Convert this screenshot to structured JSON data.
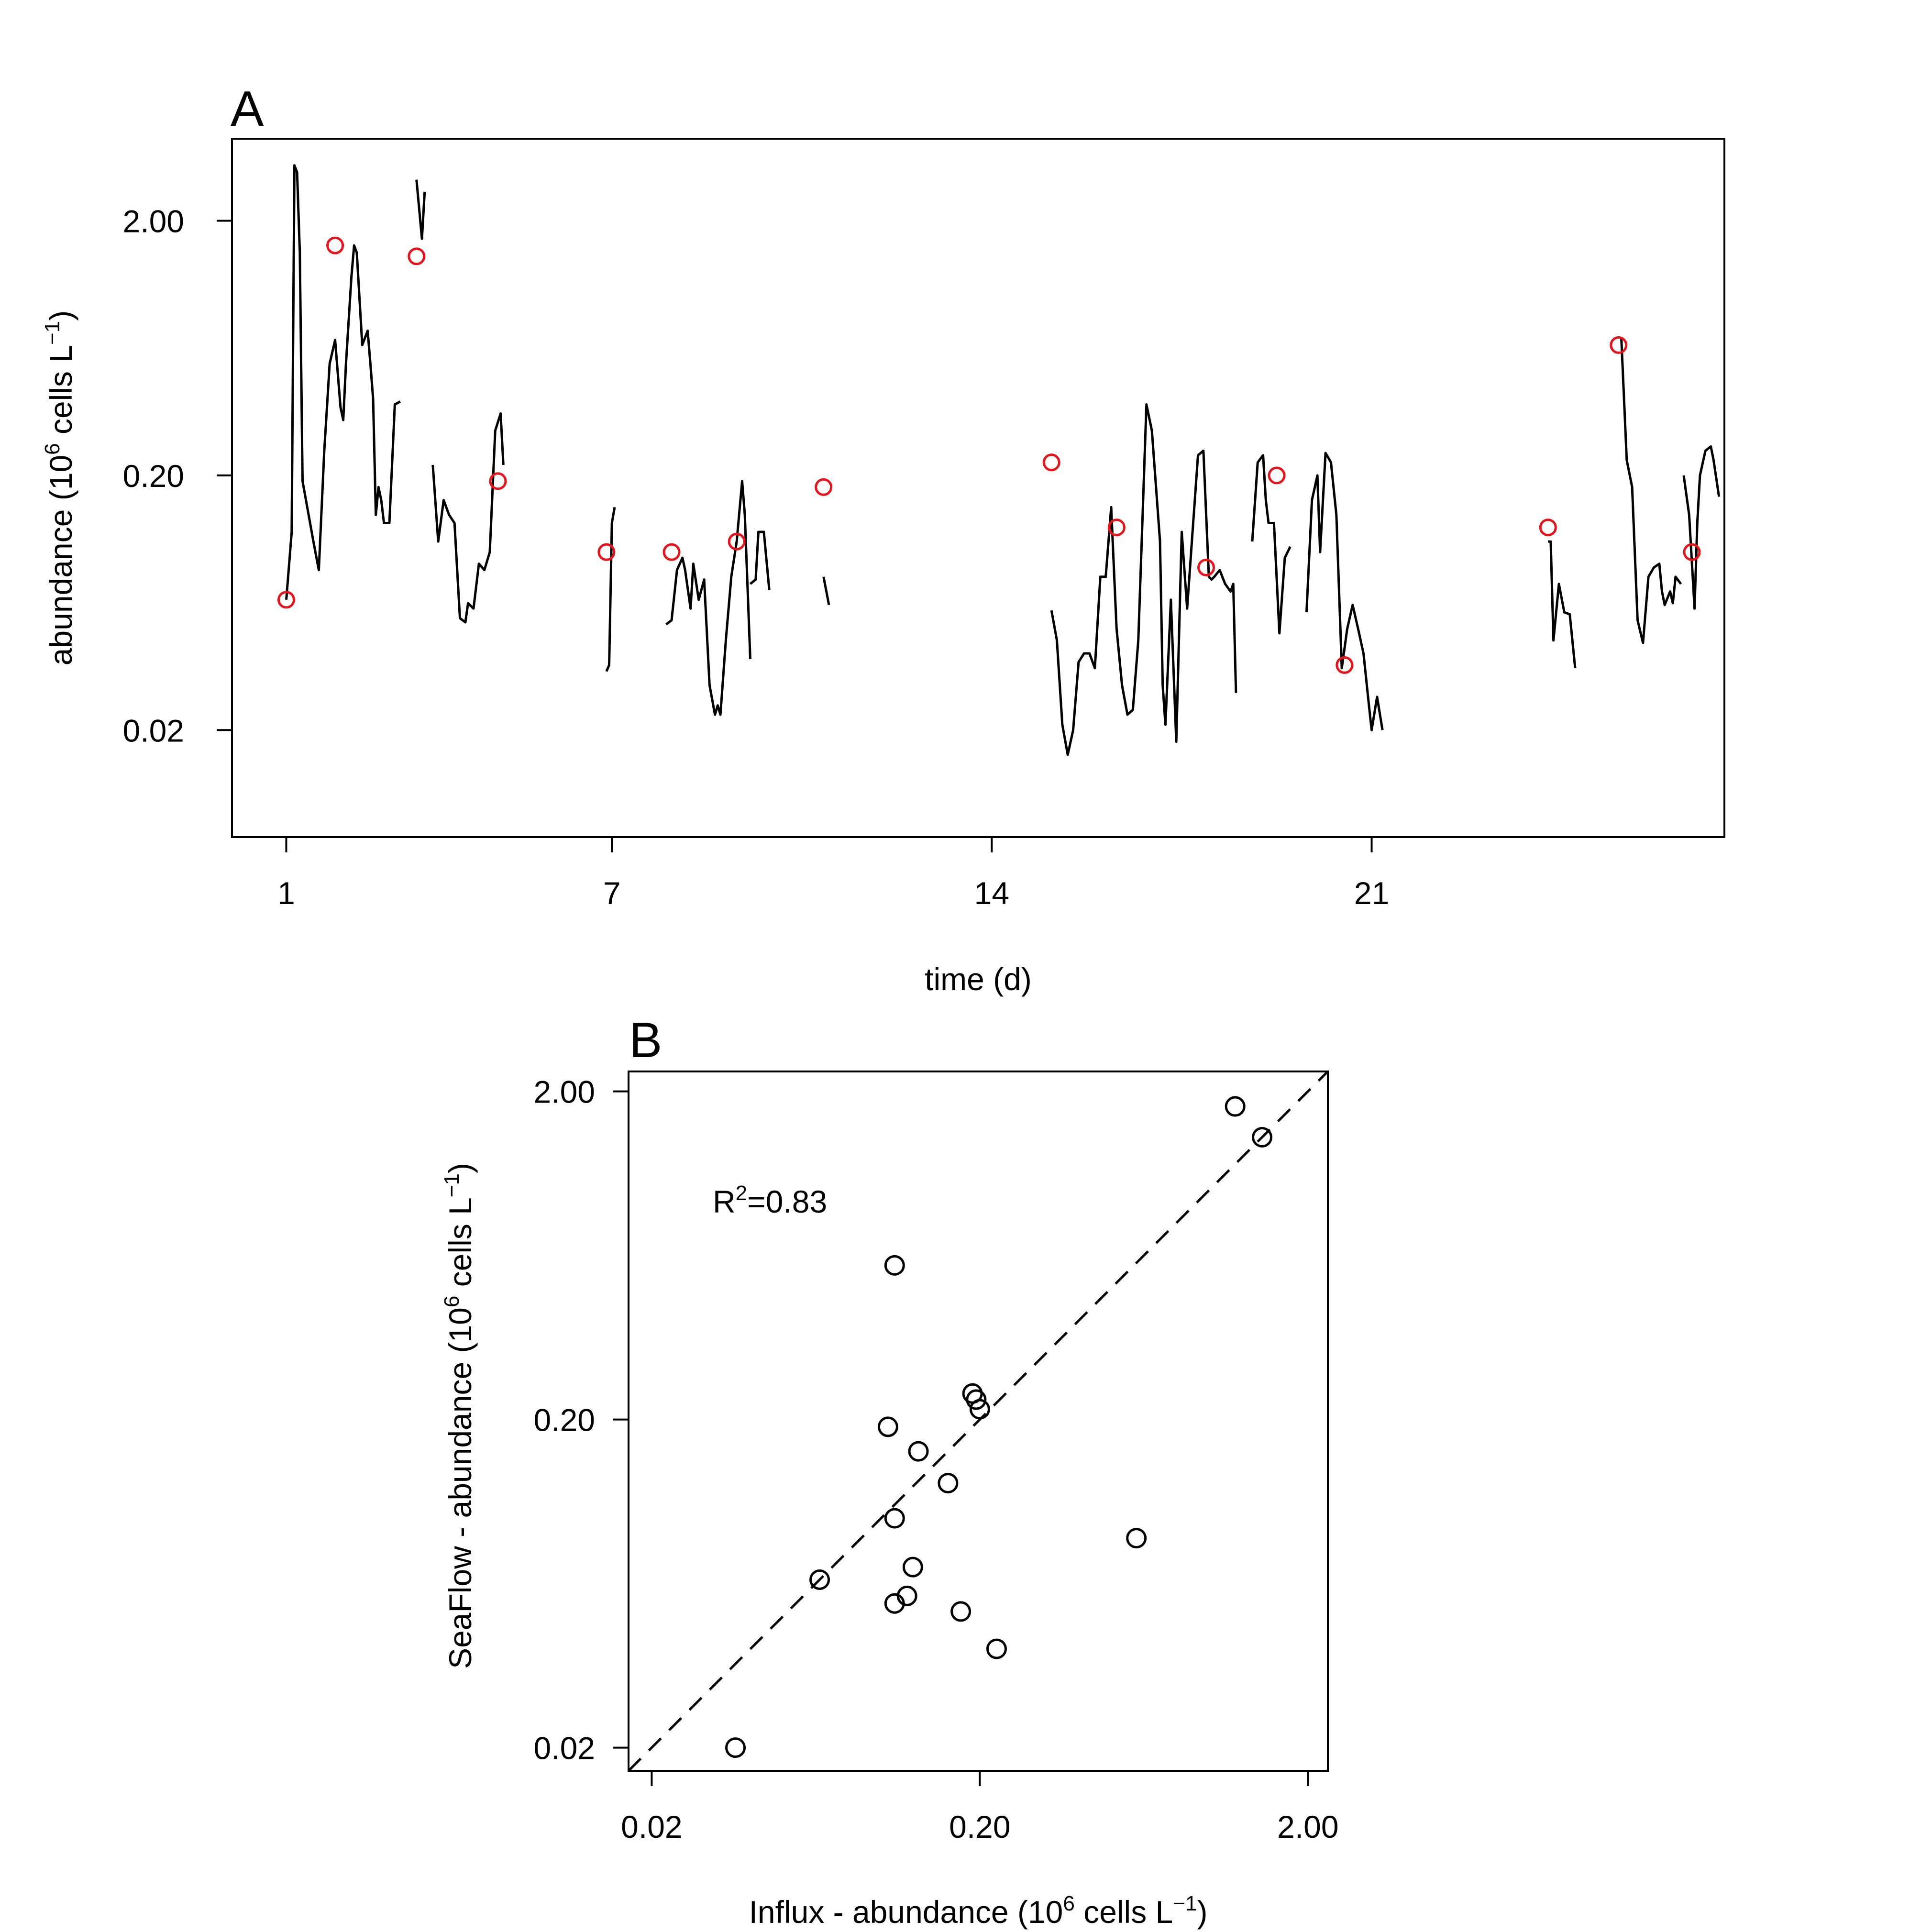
{
  "chart_data": [
    {
      "panel": "A",
      "type": "line",
      "xlabel": "time (d)",
      "ylabel": {
        "prefix": "abundance (10",
        "sup1": "6",
        "mid": " cells L",
        "sup2": "−1",
        "suffix": ")"
      },
      "x_ticks": [
        1,
        7,
        14,
        21
      ],
      "x_tick_labels": [
        "1",
        "7",
        "14",
        "21"
      ],
      "y_ticks": [
        0.02,
        0.2,
        2.0
      ],
      "y_tick_labels": [
        "0.02",
        "0.20",
        "2.00"
      ],
      "y_scale": "log",
      "xlim": [
        0,
        27.5
      ],
      "ylim": [
        0.0076,
        4.2
      ],
      "grid": false,
      "series": [
        {
          "style": "line",
          "color": "#000000",
          "segments": [
            [
              [
                1.0,
                0.065
              ],
              [
                1.1,
                0.12
              ],
              [
                1.15,
                3.3
              ],
              [
                1.2,
                3.1
              ],
              [
                1.25,
                1.5
              ],
              [
                1.3,
                0.19
              ],
              [
                1.5,
                0.11
              ],
              [
                1.6,
                0.085
              ],
              [
                1.7,
                0.25
              ],
              [
                1.8,
                0.55
              ],
              [
                1.9,
                0.68
              ],
              [
                2.0,
                0.37
              ],
              [
                2.05,
                0.33
              ],
              [
                2.1,
                0.55
              ],
              [
                2.2,
                1.2
              ],
              [
                2.25,
                1.6
              ],
              [
                2.3,
                1.5
              ],
              [
                2.4,
                0.65
              ],
              [
                2.5,
                0.74
              ],
              [
                2.55,
                0.55
              ],
              [
                2.6,
                0.4
              ],
              [
                2.65,
                0.14
              ],
              [
                2.7,
                0.18
              ],
              [
                2.75,
                0.16
              ],
              [
                2.8,
                0.13
              ],
              [
                2.9,
                0.13
              ],
              [
                3.0,
                0.38
              ],
              [
                3.1,
                0.39
              ]
            ],
            [
              [
                3.4,
                2.9
              ],
              [
                3.5,
                1.7
              ],
              [
                3.55,
                2.6
              ]
            ],
            [
              [
                3.7,
                0.22
              ],
              [
                3.8,
                0.11
              ],
              [
                3.9,
                0.16
              ],
              [
                4.0,
                0.14
              ],
              [
                4.1,
                0.13
              ],
              [
                4.2,
                0.055
              ],
              [
                4.3,
                0.053
              ],
              [
                4.35,
                0.063
              ],
              [
                4.45,
                0.06
              ],
              [
                4.55,
                0.09
              ],
              [
                4.65,
                0.085
              ],
              [
                4.75,
                0.1
              ],
              [
                4.85,
                0.3
              ],
              [
                4.95,
                0.35
              ],
              [
                5.0,
                0.22
              ]
            ]
          ]
        },
        {
          "style": "line",
          "color": "#000000",
          "segments": [
            [
              [
                6.9,
                0.034
              ],
              [
                6.95,
                0.036
              ],
              [
                7.0,
                0.13
              ],
              [
                7.05,
                0.15
              ]
            ],
            [
              [
                8.0,
                0.052
              ],
              [
                8.1,
                0.054
              ],
              [
                8.2,
                0.085
              ],
              [
                8.3,
                0.095
              ],
              [
                8.35,
                0.085
              ],
              [
                8.45,
                0.06
              ],
              [
                8.5,
                0.09
              ],
              [
                8.6,
                0.065
              ],
              [
                8.7,
                0.078
              ],
              [
                8.8,
                0.03
              ],
              [
                8.9,
                0.023
              ],
              [
                8.95,
                0.025
              ],
              [
                9.0,
                0.023
              ],
              [
                9.1,
                0.045
              ],
              [
                9.2,
                0.08
              ],
              [
                9.3,
                0.11
              ],
              [
                9.4,
                0.19
              ],
              [
                9.45,
                0.14
              ],
              [
                9.55,
                0.038
              ]
            ],
            [
              [
                9.55,
                0.075
              ],
              [
                9.65,
                0.078
              ],
              [
                9.7,
                0.12
              ],
              [
                9.8,
                0.12
              ],
              [
                9.9,
                0.071
              ]
            ],
            [
              [
                10.9,
                0.08
              ],
              [
                11.0,
                0.062
              ]
            ]
          ]
        },
        {
          "style": "line",
          "color": "#000000",
          "segments": [
            [
              [
                15.1,
                0.059
              ],
              [
                15.2,
                0.045
              ],
              [
                15.3,
                0.021
              ],
              [
                15.4,
                0.016
              ],
              [
                15.5,
                0.02
              ],
              [
                15.6,
                0.037
              ],
              [
                15.7,
                0.04
              ],
              [
                15.8,
                0.04
              ],
              [
                15.9,
                0.035
              ],
              [
                16.0,
                0.08
              ],
              [
                16.1,
                0.08
              ],
              [
                16.2,
                0.15
              ],
              [
                16.3,
                0.05
              ],
              [
                16.4,
                0.03
              ],
              [
                16.5,
                0.023
              ],
              [
                16.6,
                0.024
              ],
              [
                16.7,
                0.045
              ],
              [
                16.85,
                0.38
              ],
              [
                16.95,
                0.3
              ],
              [
                17.1,
                0.11
              ],
              [
                17.15,
                0.03
              ],
              [
                17.2,
                0.021
              ],
              [
                17.3,
                0.065
              ],
              [
                17.4,
                0.018
              ],
              [
                17.5,
                0.12
              ],
              [
                17.6,
                0.06
              ],
              [
                17.7,
                0.12
              ],
              [
                17.8,
                0.24
              ],
              [
                17.9,
                0.25
              ],
              [
                18.0,
                0.08
              ],
              [
                18.05,
                0.078
              ],
              [
                18.1,
                0.08
              ],
              [
                18.2,
                0.085
              ],
              [
                18.3,
                0.075
              ],
              [
                18.4,
                0.07
              ],
              [
                18.45,
                0.075
              ],
              [
                18.5,
                0.028
              ]
            ],
            [
              [
                18.8,
                0.11
              ],
              [
                18.9,
                0.225
              ],
              [
                19.0,
                0.24
              ],
              [
                19.05,
                0.16
              ],
              [
                19.1,
                0.13
              ],
              [
                19.2,
                0.13
              ],
              [
                19.3,
                0.048
              ],
              [
                19.4,
                0.095
              ],
              [
                19.5,
                0.105
              ]
            ],
            [
              [
                19.8,
                0.058
              ],
              [
                19.9,
                0.16
              ],
              [
                20.0,
                0.2
              ],
              [
                20.05,
                0.1
              ],
              [
                20.15,
                0.245
              ],
              [
                20.25,
                0.225
              ],
              [
                20.35,
                0.14
              ],
              [
                20.45,
                0.035
              ],
              [
                20.55,
                0.05
              ],
              [
                20.65,
                0.062
              ],
              [
                20.75,
                0.05
              ],
              [
                20.85,
                0.04
              ],
              [
                20.95,
                0.025
              ],
              [
                21.0,
                0.02
              ],
              [
                21.1,
                0.027
              ],
              [
                21.2,
                0.02
              ]
            ]
          ]
        },
        {
          "style": "line",
          "color": "#000000",
          "segments": [
            [
              [
                24.25,
                0.11
              ],
              [
                24.3,
                0.11
              ],
              [
                24.35,
                0.045
              ],
              [
                24.45,
                0.075
              ],
              [
                24.55,
                0.058
              ],
              [
                24.65,
                0.057
              ],
              [
                24.75,
                0.035
              ]
            ],
            [
              [
                25.6,
                0.7
              ],
              [
                25.7,
                0.23
              ],
              [
                25.8,
                0.18
              ],
              [
                25.9,
                0.054
              ],
              [
                26.0,
                0.044
              ],
              [
                26.1,
                0.08
              ],
              [
                26.2,
                0.087
              ],
              [
                26.3,
                0.09
              ],
              [
                26.35,
                0.07
              ],
              [
                26.4,
                0.062
              ],
              [
                26.5,
                0.07
              ],
              [
                26.55,
                0.063
              ],
              [
                26.6,
                0.08
              ],
              [
                26.7,
                0.075
              ]
            ],
            [
              [
                26.75,
                0.2
              ],
              [
                26.85,
                0.14
              ],
              [
                26.95,
                0.06
              ],
              [
                27.0,
                0.13
              ],
              [
                27.05,
                0.2
              ],
              [
                27.15,
                0.25
              ],
              [
                27.25,
                0.26
              ],
              [
                27.3,
                0.23
              ],
              [
                27.4,
                0.165
              ]
            ]
          ]
        }
      ],
      "points": {
        "style": "open-circle",
        "color": "#e8141b",
        "x": [
          1.0,
          1.9,
          3.4,
          4.9,
          6.9,
          8.1,
          9.3,
          10.9,
          15.1,
          16.3,
          17.95,
          19.25,
          20.5,
          24.25,
          25.55,
          26.9
        ],
        "y": [
          0.065,
          1.6,
          1.45,
          0.19,
          0.1,
          0.1,
          0.11,
          0.18,
          0.225,
          0.125,
          0.087,
          0.2,
          0.036,
          0.125,
          0.65,
          0.1
        ]
      }
    },
    {
      "panel": "B",
      "type": "scatter",
      "xlabel": {
        "prefix": "Influx - abundance (10",
        "sup1": "6",
        "mid": " cells L",
        "sup2": "−1",
        "suffix": ")"
      },
      "ylabel": {
        "prefix": "SeaFlow - abundance (10",
        "sup1": "6",
        "mid": " cells L",
        "sup2": "−1",
        "suffix": ")"
      },
      "x_scale": "log",
      "y_scale": "log",
      "x_ticks": [
        0.02,
        0.2,
        2.0
      ],
      "x_tick_labels": [
        "0.02",
        "0.20",
        "2.00"
      ],
      "y_ticks": [
        0.02,
        0.2,
        2.0
      ],
      "y_tick_labels": [
        "0.02",
        "0.20",
        "2.00"
      ],
      "xlim": [
        0.017,
        2.3
      ],
      "ylim": [
        0.017,
        2.3
      ],
      "grid": false,
      "reference_line": {
        "style": "dashed",
        "slope": 1,
        "intercept": 0
      },
      "annotation": {
        "base": "R",
        "sup": "2",
        "text": "=0.83"
      },
      "points": {
        "style": "open-circle",
        "color": "#000000",
        "x": [
          0.036,
          0.065,
          0.11,
          0.11,
          0.105,
          0.11,
          0.13,
          0.125,
          0.12,
          0.16,
          0.175,
          0.225,
          0.6,
          1.2,
          1.45,
          0.195,
          0.19,
          0.2
        ],
        "y": [
          0.02,
          0.065,
          0.59,
          0.1,
          0.19,
          0.055,
          0.16,
          0.071,
          0.058,
          0.128,
          0.052,
          0.04,
          0.087,
          1.8,
          1.45,
          0.23,
          0.24,
          0.215
        ]
      }
    }
  ]
}
